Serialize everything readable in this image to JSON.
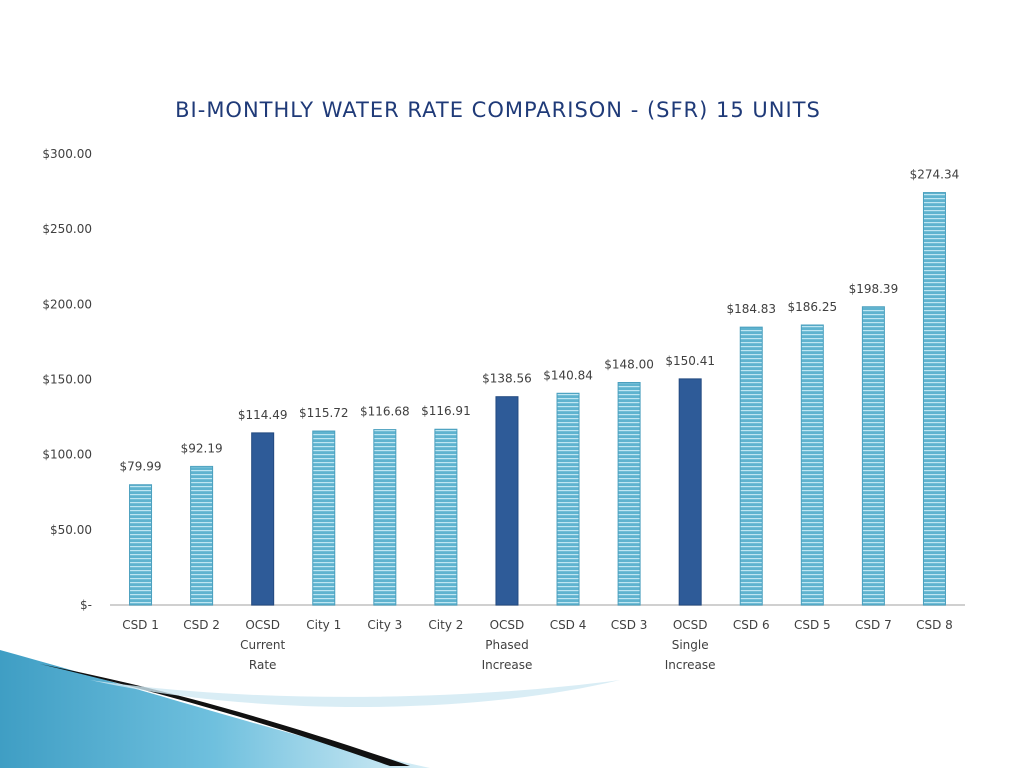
{
  "chart_data": {
    "type": "bar",
    "title": "BI-MONTHLY WATER RATE COMPARISON - (SFR) 15 UNITS",
    "xlabel": "",
    "ylabel": "",
    "ylim": [
      0,
      300
    ],
    "y_ticks": [
      {
        "value": 0,
        "label": "$-"
      },
      {
        "value": 50,
        "label": "$50.00"
      },
      {
        "value": 100,
        "label": "$100.00"
      },
      {
        "value": 150,
        "label": "$150.00"
      },
      {
        "value": 200,
        "label": "$200.00"
      },
      {
        "value": 250,
        "label": "$250.00"
      },
      {
        "value": 300,
        "label": "$300.00"
      }
    ],
    "grid": false,
    "legend": "none",
    "categories": [
      [
        "CSD 1"
      ],
      [
        "CSD 2"
      ],
      [
        "OCSD",
        "Current",
        "Rate"
      ],
      [
        "City 1"
      ],
      [
        "City 3"
      ],
      [
        "City 2"
      ],
      [
        "OCSD",
        "Phased",
        "Increase"
      ],
      [
        "CSD 4"
      ],
      [
        "CSD 3"
      ],
      [
        "OCSD",
        "Single",
        "Increase"
      ],
      [
        "CSD 6"
      ],
      [
        "CSD 5"
      ],
      [
        "CSD 7"
      ],
      [
        "CSD 8"
      ]
    ],
    "values": [
      79.99,
      92.19,
      114.49,
      115.72,
      116.68,
      116.91,
      138.56,
      140.84,
      148.0,
      150.41,
      184.83,
      186.25,
      198.39,
      274.34
    ],
    "data_labels": [
      "$79.99",
      "$92.19",
      "$114.49",
      "$115.72",
      "$116.68",
      "$116.91",
      "$138.56",
      "$140.84",
      "$148.00",
      "$150.41",
      "$184.83",
      "$186.25",
      "$198.39",
      "$274.34"
    ],
    "highlighted": [
      false,
      false,
      true,
      false,
      false,
      false,
      true,
      false,
      false,
      true,
      false,
      false,
      false,
      false
    ],
    "colors": {
      "bar_fill": "#5fb3cf",
      "bar_stripe": "#bfe6f2",
      "highlight_fill": "#2e5b98",
      "axis": "#d0d0d0",
      "text": "#404040",
      "title": "#1f3a78",
      "swoosh_blue": "#4aa7cc",
      "swoosh_dark": "#111111",
      "swoosh_light": "#cfe8f3"
    }
  }
}
